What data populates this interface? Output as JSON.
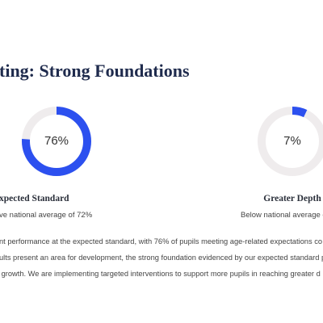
{
  "heading": "ting: Strong Foundations",
  "metrics": [
    {
      "value": 76,
      "value_label": "76%",
      "label": "xpected Standard",
      "note": "ve national average of 72%"
    },
    {
      "value": 7,
      "value_label": "7%",
      "label": "Greater Depth",
      "note": "Below national average c"
    }
  ],
  "paragraph": [
    "nt performance at the expected standard, with 76% of pupils meeting age-related expectations co",
    "ults present an area for development, the strong foundation evidenced by our expected standard p",
    " growth. We are implementing targeted interventions to support more pupils in reaching greater d"
  ]
}
